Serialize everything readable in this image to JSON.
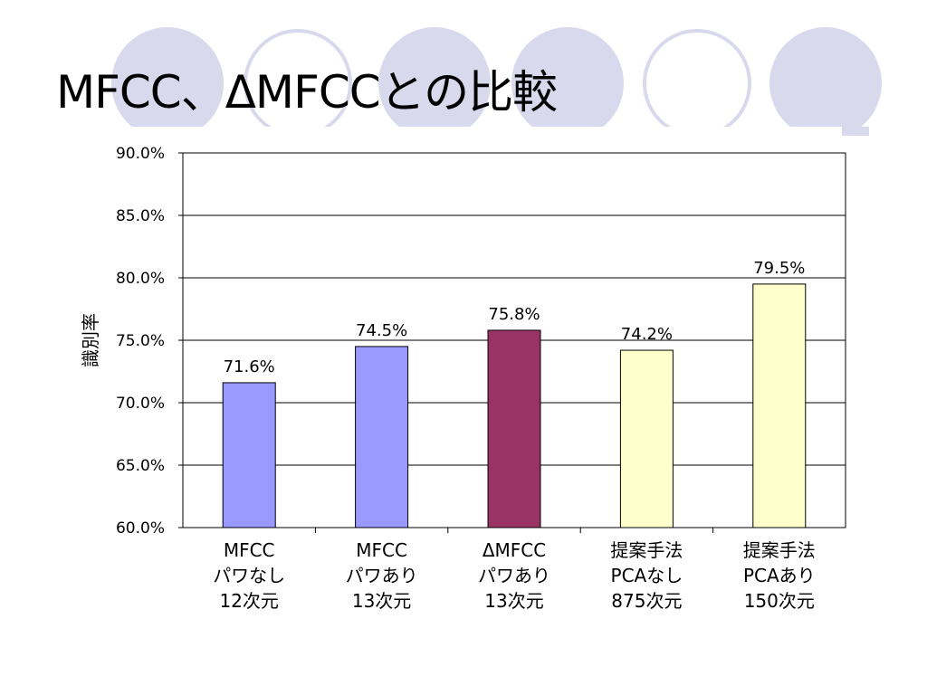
{
  "title": "MFCC、ΔMFCCとの比較",
  "chart_data": {
    "type": "bar",
    "title": "",
    "xlabel": "",
    "ylabel": "識別率",
    "ylim": [
      60,
      90
    ],
    "yticks": [
      "60.0%",
      "65.0%",
      "70.0%",
      "75.0%",
      "80.0%",
      "85.0%",
      "90.0%"
    ],
    "grid": true,
    "legend": "none",
    "categories": [
      [
        "MFCC",
        "パワなし",
        "12次元"
      ],
      [
        "MFCC",
        "パワあり",
        "13次元"
      ],
      [
        "ΔMFCC",
        "パワあり",
        "13次元"
      ],
      [
        "提案手法",
        "PCAなし",
        "875次元"
      ],
      [
        "提案手法",
        "PCAあり",
        "150次元"
      ]
    ],
    "values": [
      71.6,
      74.5,
      75.8,
      74.2,
      79.5
    ],
    "data_labels": [
      "71.6%",
      "74.5%",
      "75.8%",
      "74.2%",
      "79.5%"
    ],
    "colors": [
      "#9999ff",
      "#9999ff",
      "#993366",
      "#ffffcc",
      "#ffffcc"
    ]
  },
  "decor_colors": {
    "filled": "#d9d9ee",
    "outline": "#d9d9ee"
  }
}
